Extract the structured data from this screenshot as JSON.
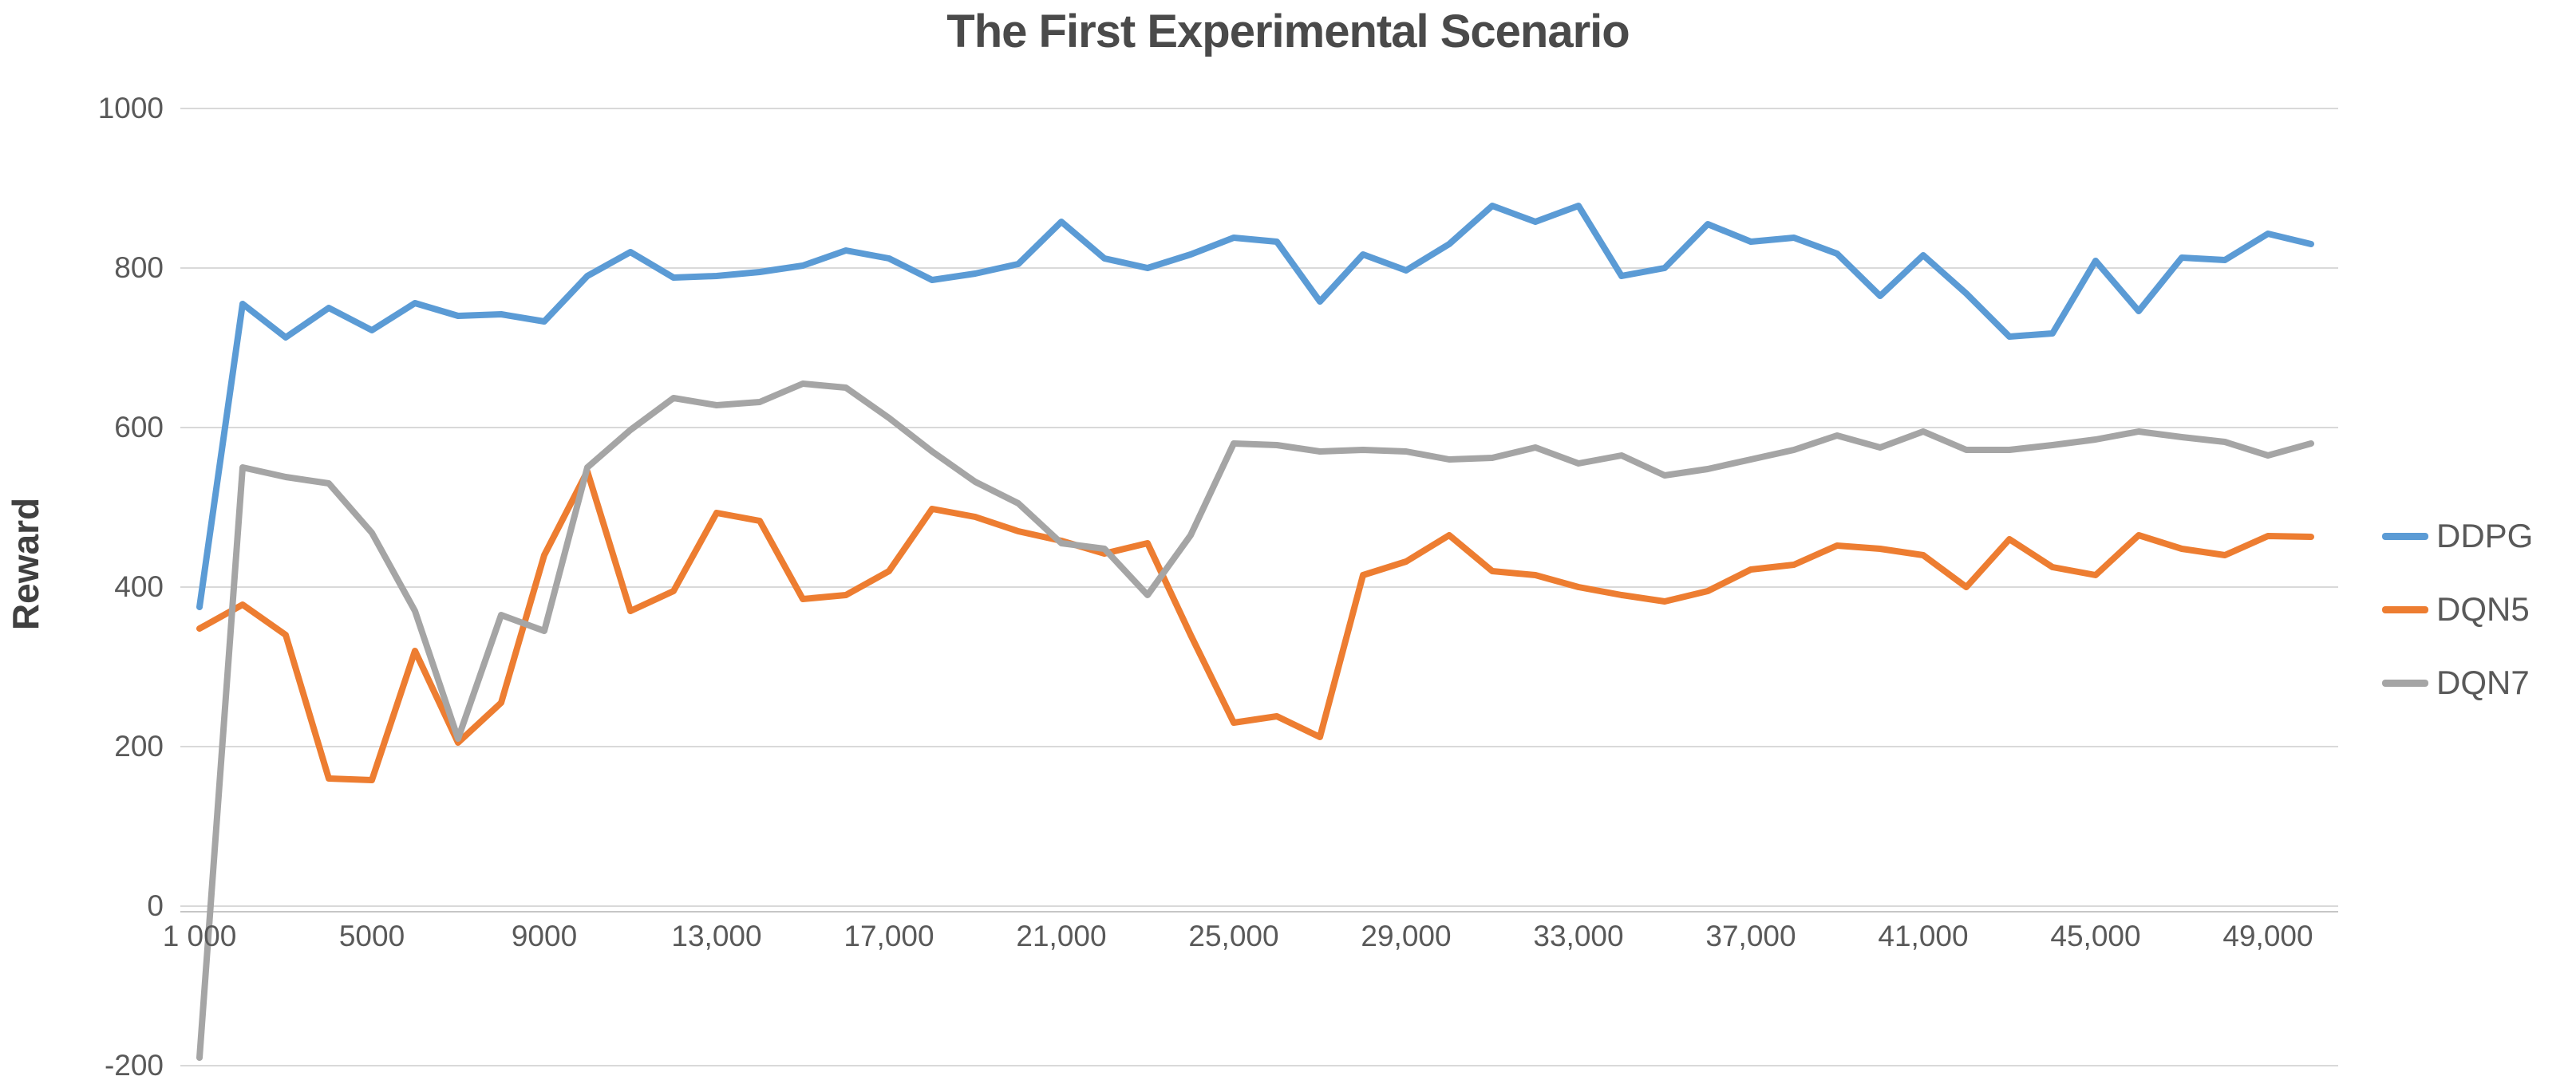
{
  "title": "The First Experimental Scenario",
  "y_axis": {
    "label": "Reward",
    "ticks": [
      1000,
      800,
      600,
      400,
      200,
      0,
      -200
    ]
  },
  "x_axis": {
    "tick_values": [
      1000,
      5000,
      9000,
      13000,
      17000,
      21000,
      25000,
      29000,
      33000,
      37000,
      41000,
      45000,
      49000
    ],
    "tick_labels": [
      "1 000",
      "5000",
      "9000",
      "13,000",
      "17,000",
      "21,000",
      "25,000",
      "29,000",
      "33,000",
      "37,000",
      "41,000",
      "45,000",
      "49,000"
    ]
  },
  "legend": {
    "items": [
      {
        "label": "DDPG",
        "color": "#5B9BD5"
      },
      {
        "label": "DQN5",
        "color": "#ED7D31"
      },
      {
        "label": "DQN7",
        "color": "#A5A5A5"
      }
    ]
  },
  "colors": {
    "grid": "#D9D9D9",
    "axis": "#C6C6C6",
    "title_text": "#4a4a4a",
    "tick_text": "#595959"
  },
  "chart_data": {
    "type": "line",
    "title": "The First Experimental Scenario",
    "xlabel": "",
    "ylabel": "Reward",
    "ylim": [
      -200,
      1000
    ],
    "xlim": [
      1000,
      50000
    ],
    "grid": "horizontal",
    "legend_position": "right",
    "x": [
      1000,
      2000,
      3000,
      4000,
      5000,
      6000,
      7000,
      8000,
      9000,
      10000,
      11000,
      12000,
      13000,
      14000,
      15000,
      16000,
      17000,
      18000,
      19000,
      20000,
      21000,
      22000,
      23000,
      24000,
      25000,
      26000,
      27000,
      28000,
      29000,
      30000,
      31000,
      32000,
      33000,
      34000,
      35000,
      36000,
      37000,
      38000,
      39000,
      40000,
      41000,
      42000,
      43000,
      44000,
      45000,
      46000,
      47000,
      48000,
      49000,
      50000
    ],
    "series": [
      {
        "name": "DDPG",
        "color": "#5B9BD5",
        "values": [
          375,
          755,
          713,
          750,
          722,
          756,
          740,
          742,
          733,
          790,
          820,
          788,
          790,
          795,
          803,
          822,
          812,
          785,
          793,
          805,
          858,
          812,
          800,
          817,
          838,
          833,
          758,
          817,
          797,
          830,
          878,
          858,
          878,
          790,
          800,
          855,
          833,
          838,
          818,
          765,
          816,
          768,
          714,
          718,
          809,
          746,
          813,
          810,
          843,
          830
        ]
      },
      {
        "name": "DQN5",
        "color": "#ED7D31",
        "values": [
          348,
          378,
          340,
          160,
          158,
          320,
          205,
          255,
          440,
          545,
          370,
          395,
          493,
          483,
          385,
          390,
          420,
          498,
          488,
          470,
          458,
          442,
          455,
          340,
          230,
          238,
          212,
          415,
          432,
          465,
          420,
          415,
          400,
          390,
          382,
          395,
          422,
          428,
          452,
          448,
          440,
          400,
          460,
          425,
          415,
          465,
          448,
          440,
          464,
          463
        ]
      },
      {
        "name": "DQN7",
        "color": "#A5A5A5",
        "values": [
          -190,
          550,
          538,
          530,
          468,
          370,
          210,
          365,
          345,
          550,
          597,
          637,
          628,
          632,
          655,
          650,
          612,
          570,
          532,
          505,
          455,
          448,
          390,
          465,
          580,
          578,
          570,
          572,
          570,
          560,
          562,
          575,
          555,
          565,
          540,
          548,
          560,
          572,
          590,
          575,
          595,
          572,
          572,
          578,
          585,
          595,
          588,
          582,
          565,
          580
        ]
      }
    ]
  }
}
